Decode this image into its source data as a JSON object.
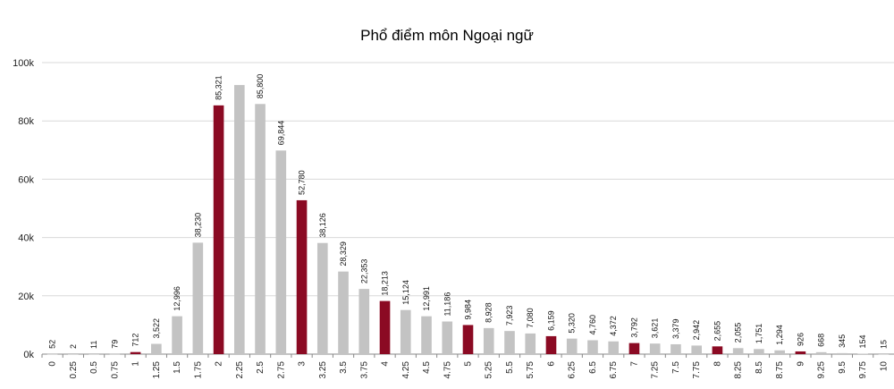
{
  "chart_data": {
    "type": "bar",
    "title": "Phổ điểm môn Ngoại ngữ",
    "xlabel": "",
    "ylabel": "",
    "ylim": [
      0,
      100000
    ],
    "yticks": [
      "0k",
      "20k",
      "40k",
      "60k",
      "80k",
      "100k"
    ],
    "grid": true,
    "categories": [
      "0",
      "0.25",
      "0.5",
      "0.75",
      "1",
      "1.25",
      "1.5",
      "1.75",
      "2",
      "2.25",
      "2.5",
      "2.75",
      "3",
      "3.25",
      "3.5",
      "3.75",
      "4",
      "4.25",
      "4.5",
      "4.75",
      "5",
      "5.25",
      "5.5",
      "5.75",
      "6",
      "6.25",
      "6.5",
      "6.75",
      "7",
      "7.25",
      "7.5",
      "7.75",
      "8",
      "8.25",
      "8.5",
      "8.75",
      "9",
      "9.25",
      "9.5",
      "9.75",
      "10"
    ],
    "values": [
      52,
      2,
      11,
      79,
      712,
      3522,
      12996,
      38230,
      85321,
      92300,
      85800,
      69844,
      52780,
      38126,
      28329,
      22353,
      18213,
      15124,
      12991,
      11186,
      9984,
      8928,
      7923,
      7080,
      6159,
      5320,
      4760,
      4372,
      3792,
      3621,
      3379,
      2942,
      2655,
      2055,
      1751,
      1294,
      926,
      668,
      345,
      154,
      15
    ],
    "value_labels": [
      "52",
      "2",
      "11",
      "79",
      "712",
      "3,522",
      "12,996",
      "38,230",
      "85,321",
      "",
      "85,800",
      "69,844",
      "52,780",
      "38,126",
      "28,329",
      "22,353",
      "18,213",
      "15,124",
      "12,991",
      "11,186",
      "9,984",
      "8,928",
      "7,923",
      "7,080",
      "6,159",
      "5,320",
      "4,760",
      "4,372",
      "3,792",
      "3,621",
      "3,379",
      "2,942",
      "2,655",
      "2,055",
      "1,751",
      "1,294",
      "926",
      "668",
      "345",
      "154",
      "15"
    ],
    "highlight_categories": [
      "1",
      "2",
      "3",
      "4",
      "5",
      "6",
      "7",
      "8",
      "9"
    ],
    "colors": {
      "highlight": "#8b0a23",
      "normal": "#c3c3c3",
      "grid": "#d9d9d9",
      "axis": "#888888"
    }
  }
}
